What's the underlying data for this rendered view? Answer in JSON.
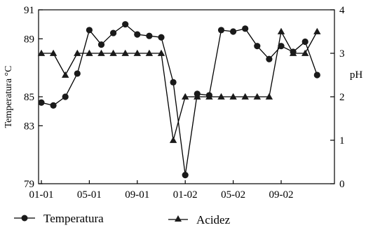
{
  "chart_data": {
    "type": "line",
    "title": "",
    "xlabel": "",
    "ylabel_left": "Temperatura °C",
    "ylabel_right": "pH",
    "x_tick_labels": [
      "01-01",
      "05-01",
      "09-01",
      "01-02",
      "05-02",
      "09-02"
    ],
    "y_left_ticks": [
      "79",
      "83",
      "85",
      "89",
      "91"
    ],
    "y_left_tick_values": [
      79,
      83,
      85,
      89,
      91
    ],
    "y_right_ticks": [
      "0",
      "1",
      "2",
      "3",
      "4"
    ],
    "y_right_tick_values": [
      0,
      1,
      2,
      3,
      4
    ],
    "ylim_left": [
      79,
      91
    ],
    "ylim_right": [
      0,
      4
    ],
    "grid": false,
    "legend_position": "bottom",
    "legend": [
      "Temperatura",
      "Acidez"
    ],
    "series": [
      {
        "name": "Temperatura",
        "axis": "left",
        "marker": "circle",
        "x": [
          "01-01",
          "02-01",
          "03-01",
          "04-01",
          "05-01",
          "06-01",
          "07-01",
          "08-01",
          "09-01",
          "10-01",
          "11-01",
          "12-01",
          "01-02",
          "02-01b",
          "03-02",
          "04-02",
          "05-02",
          "06-02",
          "07-02",
          "08-02",
          "09-02",
          "10-02",
          "11-02",
          "12-02"
        ],
        "values": [
          84.6,
          84.4,
          85.0,
          86.6,
          89.6,
          88.6,
          89.4,
          90.0,
          89.3,
          89.2,
          89.1,
          86.0,
          79.6,
          85.2,
          85.1,
          89.6,
          89.5,
          89.7,
          88.5,
          87.6,
          88.5,
          88.1,
          88.8,
          86.5
        ]
      },
      {
        "name": "Acidez",
        "axis": "right",
        "marker": "triangle",
        "values": [
          3.0,
          3.0,
          2.5,
          3.0,
          3.0,
          3.0,
          3.0,
          3.0,
          3.0,
          3.0,
          3.0,
          1.0,
          2.0,
          2.0,
          2.0,
          2.0,
          2.0,
          2.0,
          2.0,
          2.0,
          3.5,
          3.0,
          3.0,
          3.5
        ]
      }
    ],
    "colors": {
      "line": "#000000",
      "marker": "#1a1a1a"
    }
  }
}
